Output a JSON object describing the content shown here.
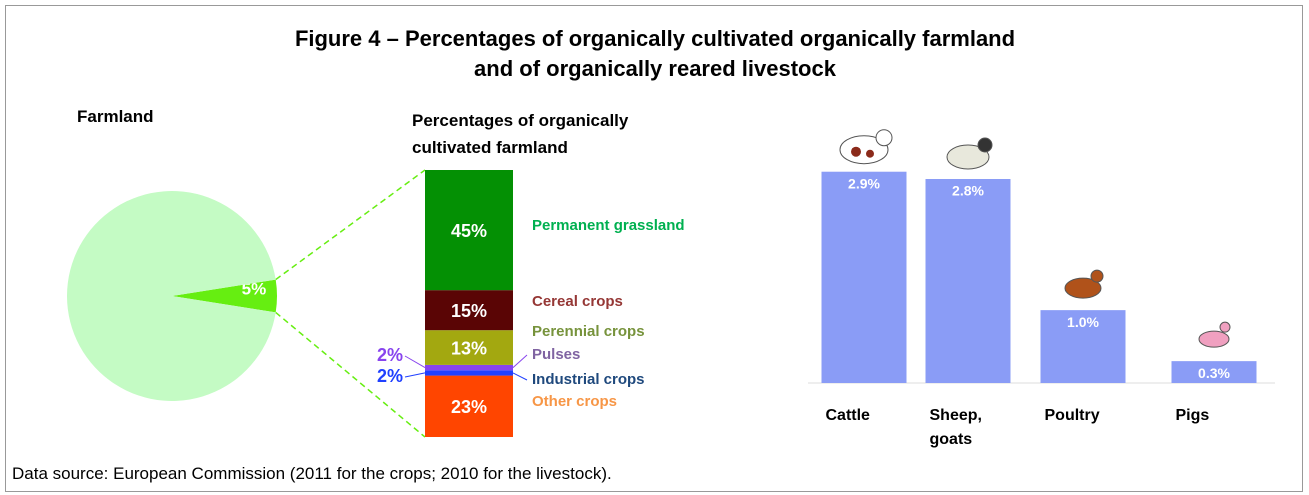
{
  "title_lines": [
    "Figure 4 – Percentages of organically cultivated organically farmland",
    "and of organically reared livestock"
  ],
  "source": "Data source: European Commission (2011 for the crops; 2010 for the livestock).",
  "chart_data": [
    {
      "type": "pie",
      "title": "Farmland",
      "values": [
        5,
        95
      ],
      "value_labels": [
        "5%",
        null
      ],
      "colors": [
        "#66ee11",
        "#c4fbc4"
      ]
    },
    {
      "type": "stacked_bar",
      "title": "Percentages of organically cultivated farmland",
      "categories": [
        null
      ],
      "ylim": [
        0,
        100
      ],
      "series": [
        {
          "name": "Other crops",
          "color": "#ff4500",
          "label_color": "#f79646",
          "values": [
            23
          ],
          "value_labels": [
            "23%"
          ]
        },
        {
          "name": "Industrial crops",
          "color": "#2040ff",
          "label_color": "#1f497d",
          "values": [
            2
          ],
          "value_labels": [
            "2%"
          ]
        },
        {
          "name": "Pulses",
          "color": "#8844ee",
          "label_color": "#8064a2",
          "values": [
            2
          ],
          "value_labels": [
            "2%"
          ]
        },
        {
          "name": "Perennial crops",
          "color": "#a3a810",
          "label_color": "#77933c",
          "values": [
            13
          ],
          "value_labels": [
            "13%"
          ]
        },
        {
          "name": "Cereal crops",
          "color": "#5a0505",
          "label_color": "#953735",
          "values": [
            15
          ],
          "value_labels": [
            "15%"
          ]
        },
        {
          "name": "Permanent grassland",
          "color": "#049004",
          "label_color": "#00b050",
          "values": [
            45
          ],
          "value_labels": [
            "45%"
          ]
        }
      ]
    },
    {
      "type": "bar",
      "categories": [
        "Cattle",
        "Sheep, goats",
        "Poultry",
        "Pigs"
      ],
      "values": [
        2.9,
        2.8,
        1.0,
        0.3
      ],
      "value_labels": [
        "2.9%",
        "2.8%",
        "1.0%",
        "0.3%"
      ],
      "color": "#8a9cf6",
      "ylim": [
        0,
        3.5
      ]
    }
  ]
}
